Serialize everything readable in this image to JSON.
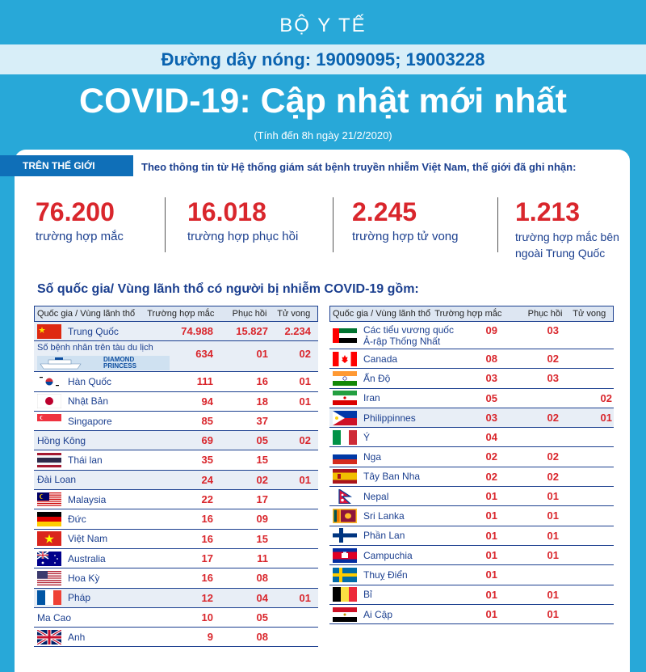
{
  "header": {
    "ministry": "BỘ Y TẾ",
    "hotline": "Đường dây nóng: 19009095; 19003228",
    "title": "COVID-19: Cập nhật mới nhất",
    "subtitle": "(Tính đến 8h ngày 21/2/2020)"
  },
  "world": {
    "tag": "TRÊN THẾ GIỚI",
    "intro": "Theo thông tin từ Hệ thống giám sát bệnh truyền nhiễm Việt Nam, thế giới đã ghi nhận:",
    "stats": [
      {
        "value": "76.200",
        "label": "trường hợp mắc"
      },
      {
        "value": "16.018",
        "label": "trường hợp  phục hồi"
      },
      {
        "value": "2.245",
        "label": "trường hợp  tử vong"
      },
      {
        "value": "1.213",
        "label_line1": "trường hợp mắc bên",
        "label_line2": "ngoài Trung Quốc"
      }
    ]
  },
  "list_title": "Số quốc gia/ Vùng lãnh thổ có người bị nhiễm COVID-19 gồm:",
  "columns": {
    "country": "Quốc gia / Vùng lãnh thổ",
    "cases": "Trường hợp mắc",
    "recovered": "Phục hồi",
    "deaths": "Tử vong"
  },
  "ship_text": "DIAMOND PRINCESS",
  "left_rows": [
    {
      "name": "Trung Quốc",
      "flag": "cn",
      "cases": "74.988",
      "recovered": "15.827",
      "deaths": "2.234",
      "shade": true
    },
    {
      "name": "Số bệnh nhân trên tàu du lịch",
      "flag": "ship",
      "cases": "634",
      "recovered": "01",
      "deaths": "02",
      "shade": true
    },
    {
      "name": "Hàn Quốc",
      "flag": "kr",
      "cases": "111",
      "recovered": "16",
      "deaths": "01",
      "shade": false
    },
    {
      "name": "Nhật Bản",
      "flag": "jp",
      "cases": "94",
      "recovered": "18",
      "deaths": "01",
      "shade": false
    },
    {
      "name": "Singapore",
      "flag": "sg",
      "cases": "85",
      "recovered": "37",
      "deaths": "",
      "shade": false
    },
    {
      "name": "Hồng Kông",
      "flag": "",
      "cases": "69",
      "recovered": "05",
      "deaths": "02",
      "shade": true
    },
    {
      "name": "Thái lan",
      "flag": "th",
      "cases": "35",
      "recovered": "15",
      "deaths": "",
      "shade": false
    },
    {
      "name": "Đài Loan",
      "flag": "",
      "cases": "24",
      "recovered": "02",
      "deaths": "01",
      "shade": true
    },
    {
      "name": "Malaysia",
      "flag": "my",
      "cases": "22",
      "recovered": "17",
      "deaths": "",
      "shade": false
    },
    {
      "name": "Đức",
      "flag": "de",
      "cases": "16",
      "recovered": "09",
      "deaths": "",
      "shade": false
    },
    {
      "name": "Việt Nam",
      "flag": "vn",
      "cases": "16",
      "recovered": "15",
      "deaths": "",
      "shade": false
    },
    {
      "name": "Australia",
      "flag": "au",
      "cases": "17",
      "recovered": "11",
      "deaths": "",
      "shade": false
    },
    {
      "name": "Hoa Kỳ",
      "flag": "us",
      "cases": "16",
      "recovered": "08",
      "deaths": "",
      "shade": false
    },
    {
      "name": "Pháp",
      "flag": "fr",
      "cases": "12",
      "recovered": "04",
      "deaths": "01",
      "shade": true
    },
    {
      "name": "Ma Cao",
      "flag": "",
      "cases": "10",
      "recovered": "05",
      "deaths": "",
      "shade": false
    },
    {
      "name": "Anh",
      "flag": "gb",
      "cases": "9",
      "recovered": "08",
      "deaths": "",
      "shade": false
    }
  ],
  "right_rows": [
    {
      "name": "Các tiểu vương quốc",
      "name2": "Ả-rập Thống Nhất",
      "flag": "ae",
      "cases": "09",
      "recovered": "03",
      "deaths": "",
      "shade": false
    },
    {
      "name": "Canada",
      "flag": "ca",
      "cases": "08",
      "recovered": "02",
      "deaths": "",
      "shade": false
    },
    {
      "name": "Ấn Độ",
      "flag": "in",
      "cases": "03",
      "recovered": "03",
      "deaths": "",
      "shade": false
    },
    {
      "name": "Iran",
      "flag": "ir",
      "cases": "05",
      "recovered": "",
      "deaths": "02",
      "shade": false
    },
    {
      "name": "Philippinnes",
      "flag": "ph",
      "cases": "03",
      "recovered": "02",
      "deaths": "01",
      "shade": true
    },
    {
      "name": "Ý",
      "flag": "it",
      "cases": "04",
      "recovered": "",
      "deaths": "",
      "shade": false
    },
    {
      "name": "Nga",
      "flag": "ru",
      "cases": "02",
      "recovered": "02",
      "deaths": "",
      "shade": false
    },
    {
      "name": "Tây Ban Nha",
      "flag": "es",
      "cases": "02",
      "recovered": "02",
      "deaths": "",
      "shade": false
    },
    {
      "name": "Nepal",
      "flag": "np",
      "cases": "01",
      "recovered": "01",
      "deaths": "",
      "shade": false
    },
    {
      "name": "Sri Lanka",
      "flag": "lk",
      "cases": "01",
      "recovered": "01",
      "deaths": "",
      "shade": false
    },
    {
      "name": "Phần Lan",
      "flag": "fi",
      "cases": "01",
      "recovered": "01",
      "deaths": "",
      "shade": false
    },
    {
      "name": "Campuchia",
      "flag": "kh",
      "cases": "01",
      "recovered": "01",
      "deaths": "",
      "shade": false
    },
    {
      "name": "Thuỵ Điển",
      "flag": "se",
      "cases": "01",
      "recovered": "",
      "deaths": "",
      "shade": false
    },
    {
      "name": "Bỉ",
      "flag": "be",
      "cases": "01",
      "recovered": "01",
      "deaths": "",
      "shade": false
    },
    {
      "name": "Ai Cập",
      "flag": "eg",
      "cases": "01",
      "recovered": "01",
      "deaths": "",
      "shade": false
    }
  ]
}
